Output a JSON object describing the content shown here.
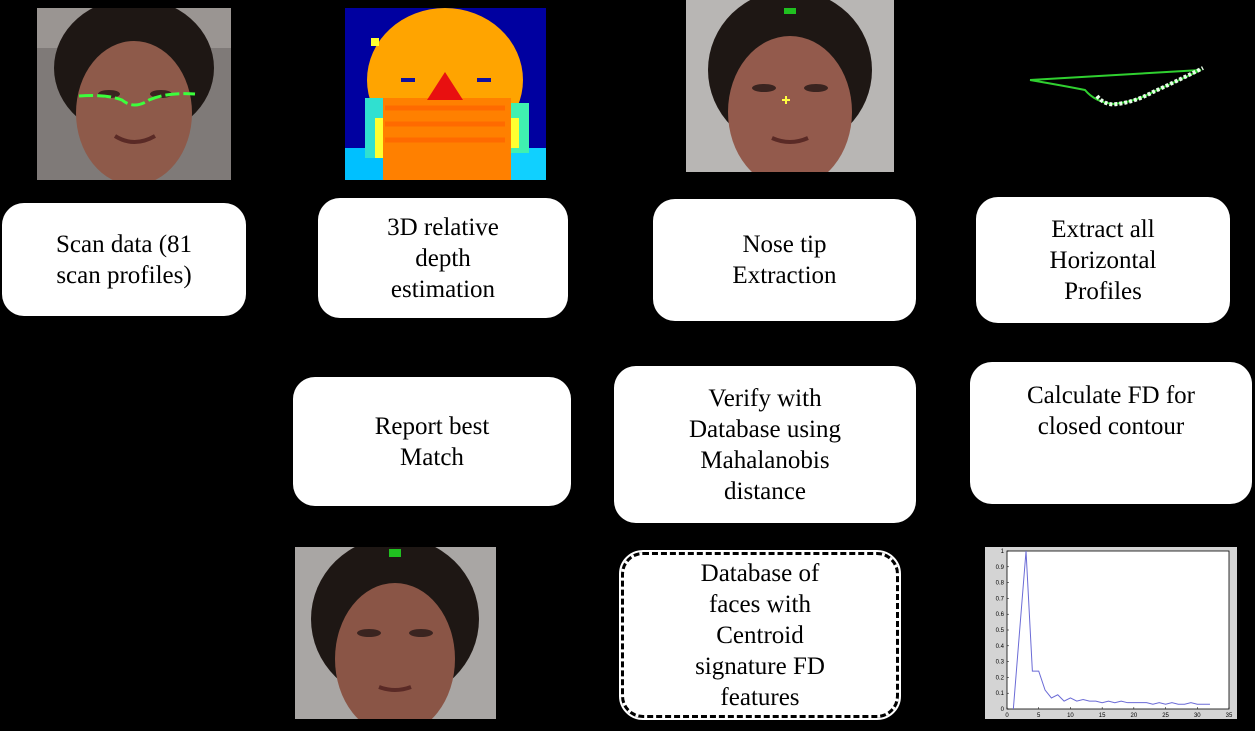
{
  "steps": {
    "scan": "Scan data (81\nscan profiles)",
    "depth": "3D relative\ndepth\nestimation",
    "nose": "Nose tip\nExtraction",
    "extract": "Extract all\nHorizontal\nProfiles",
    "calculate": "Calculate FD for\nclosed contour",
    "verify": "Verify with\nDatabase using\nMahalanobis\ndistance",
    "report": "Report best\nMatch",
    "database": "Database of\nfaces with\nCentroid\nsignature FD\nfeatures"
  },
  "chart_data": {
    "type": "line",
    "title": "",
    "xlabel": "",
    "ylabel": "",
    "xlim": [
      0,
      35
    ],
    "ylim": [
      0,
      1
    ],
    "xticks": [
      "0",
      "5",
      "10",
      "15",
      "20",
      "25",
      "30",
      "35"
    ],
    "yticks": [
      "0",
      "0.1",
      "0.2",
      "0.3",
      "0.4",
      "0.5",
      "0.6",
      "0.7",
      "0.8",
      "0.9",
      "1"
    ],
    "series": [
      {
        "color": "#6b6bd6",
        "x": [
          1,
          2,
          3,
          4,
          5,
          6,
          7,
          8,
          9,
          10,
          11,
          12,
          13,
          14,
          15,
          16,
          17,
          18,
          19,
          20,
          21,
          22,
          23,
          24,
          25,
          26,
          27,
          28,
          29,
          30,
          31,
          32
        ],
        "y": [
          0.0,
          0.5,
          1.0,
          0.24,
          0.24,
          0.12,
          0.07,
          0.09,
          0.05,
          0.07,
          0.05,
          0.06,
          0.05,
          0.05,
          0.04,
          0.05,
          0.04,
          0.05,
          0.04,
          0.04,
          0.04,
          0.04,
          0.03,
          0.04,
          0.03,
          0.04,
          0.03,
          0.03,
          0.04,
          0.03,
          0.03,
          0.03
        ]
      }
    ]
  }
}
